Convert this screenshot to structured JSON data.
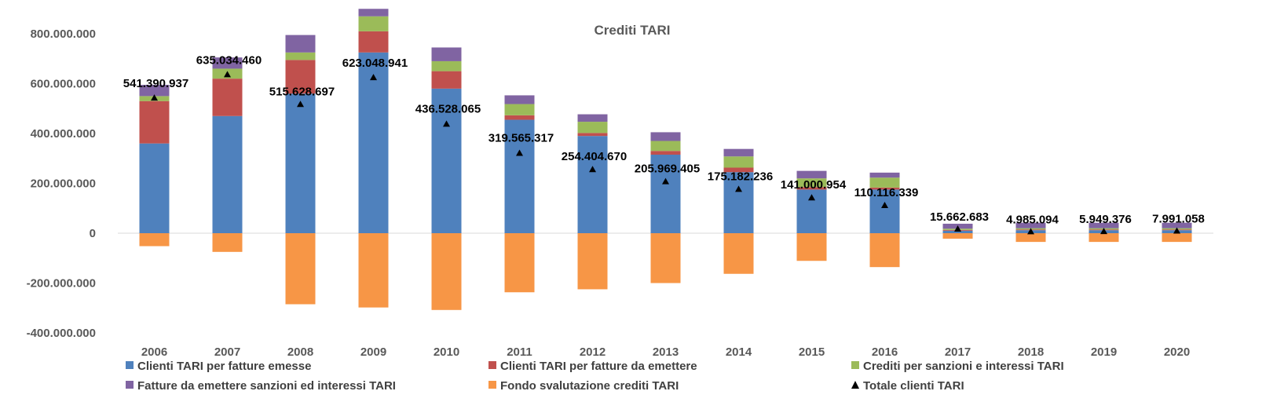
{
  "chart_data": {
    "type": "bar",
    "stacked": true,
    "title": "Crediti TARI",
    "xlabel": "",
    "ylabel": "",
    "ylim": [
      -400000000,
      900000000
    ],
    "yticks": [
      800000000,
      600000000,
      400000000,
      200000000,
      0,
      -200000000,
      -400000000
    ],
    "ytick_labels": [
      "800.000.000",
      "600.000.000",
      "400.000.000",
      "200.000.000",
      "0",
      "-200.000.000",
      "-400.000.000"
    ],
    "grid": false,
    "legend_position": "bottom",
    "categories": [
      "2006",
      "2007",
      "2008",
      "2009",
      "2010",
      "2011",
      "2012",
      "2013",
      "2014",
      "2015",
      "2016",
      "2017",
      "2018",
      "2019",
      "2020"
    ],
    "series": [
      {
        "name": "Clienti TARI per fatture emesse",
        "color": "#4F81BD",
        "values": [
          360000000,
          470000000,
          560000000,
          725000000,
          580000000,
          455000000,
          390000000,
          315000000,
          245000000,
          175000000,
          175000000,
          10000000,
          12000000,
          12000000,
          12000000
        ]
      },
      {
        "name": "Clienti TARI per fatture da emettere",
        "color": "#C0504D",
        "values": [
          170000000,
          150000000,
          135000000,
          85000000,
          70000000,
          18000000,
          12000000,
          15000000,
          18000000,
          10000000,
          8000000,
          3000000,
          3000000,
          3000000,
          3000000
        ]
      },
      {
        "name": "Crediti per sanzioni e interessi TARI",
        "color": "#9BBB59",
        "values": [
          20000000,
          40000000,
          30000000,
          60000000,
          40000000,
          45000000,
          45000000,
          40000000,
          45000000,
          35000000,
          40000000,
          5000000,
          5000000,
          5000000,
          5000000
        ]
      },
      {
        "name": "Fatture da emettere sanzioni ed interessi TARI",
        "color": "#8064A2",
        "values": [
          45000000,
          45000000,
          70000000,
          30000000,
          55000000,
          35000000,
          30000000,
          35000000,
          30000000,
          30000000,
          20000000,
          20000000,
          22000000,
          22000000,
          22000000
        ]
      },
      {
        "name": "Fondo svalutazione crediti TARI",
        "color": "#F79646",
        "values": [
          -52000000,
          -75000000,
          -285000000,
          -298000000,
          -308000000,
          -237000000,
          -225000000,
          -200000000,
          -163000000,
          -111000000,
          -136000000,
          -22000000,
          -35000000,
          -35000000,
          -35000000
        ]
      }
    ],
    "totals": {
      "name": "Totale clienti TARI",
      "marker": "triangle",
      "color": "#000000",
      "values": [
        541390937,
        635034460,
        515628697,
        623048941,
        436528065,
        319565317,
        254404670,
        205969405,
        175182236,
        141000954,
        110116339,
        15662683,
        4985094,
        5949376,
        7991058
      ],
      "labels": [
        "541.390.937",
        "635.034.460",
        "515.628.697",
        "623.048.941",
        "436.528.065",
        "319.565.317",
        "254.404.670",
        "205.969.405",
        "175.182.236",
        "141.000.954",
        "110.116.339",
        "15.662.683",
        "4.985.094",
        "5.949.376",
        "7.991.058"
      ]
    }
  }
}
